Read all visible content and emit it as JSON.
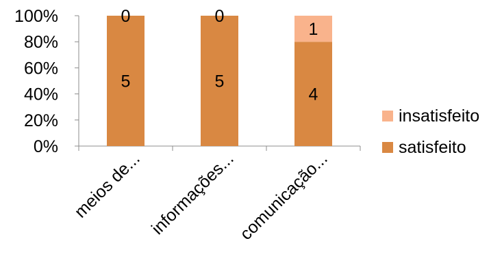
{
  "chart_data": {
    "type": "bar",
    "stacked": "percent",
    "categories": [
      "meios de...",
      "informações...",
      "comunicação..."
    ],
    "series": [
      {
        "name": "satisfeito",
        "values": [
          5,
          5,
          4
        ],
        "color": "#d98842"
      },
      {
        "name": "insatisfeito",
        "values": [
          0,
          0,
          1
        ],
        "color": "#f9b38c"
      }
    ],
    "y_ticks": [
      "0%",
      "20%",
      "40%",
      "60%",
      "80%",
      "100%"
    ],
    "ylim": [
      0,
      100
    ],
    "grid": false,
    "legend_position": "right",
    "title": "",
    "xlabel": "",
    "ylabel": ""
  }
}
